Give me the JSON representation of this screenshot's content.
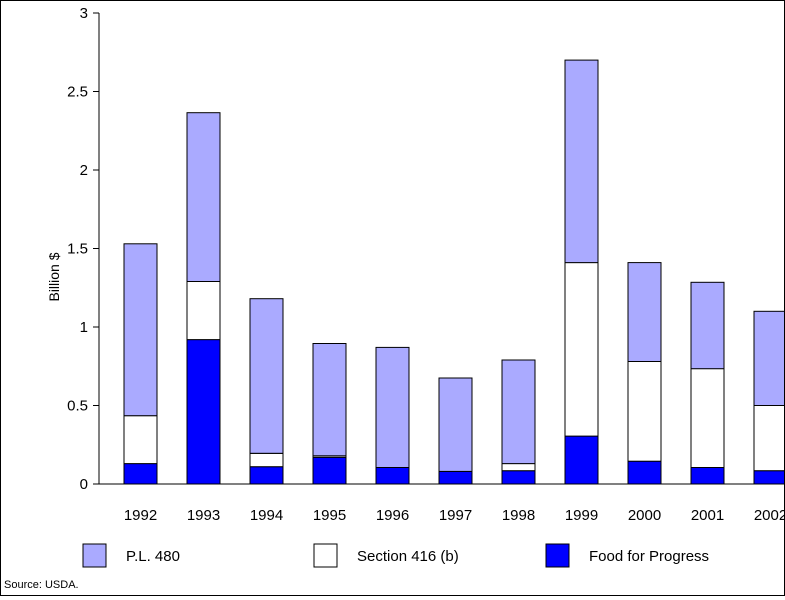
{
  "chart_data": {
    "type": "bar",
    "stacked": true,
    "categories": [
      "1992",
      "1993",
      "1994",
      "1995",
      "1996",
      "1997",
      "1998",
      "1999",
      "2000",
      "2001",
      "2002"
    ],
    "series": [
      {
        "name": "Food for Progress",
        "color": "#0000ff",
        "values": [
          0.13,
          0.92,
          0.11,
          0.17,
          0.105,
          0.08,
          0.085,
          0.305,
          0.145,
          0.105,
          0.085
        ]
      },
      {
        "name": "Section 416 (b)",
        "color": "#ffffff",
        "values": [
          0.305,
          0.37,
          0.085,
          0.01,
          0.0,
          0.0,
          0.045,
          1.105,
          0.635,
          0.63,
          0.415
        ]
      },
      {
        "name": "P.L. 480",
        "color": "#aaaaff",
        "values": [
          1.095,
          1.075,
          0.985,
          0.715,
          0.765,
          0.595,
          0.66,
          1.29,
          0.63,
          0.55,
          0.6
        ]
      }
    ],
    "xlabel": "",
    "ylabel": "Billion $",
    "ylim": [
      0,
      3
    ],
    "yticks": [
      "0",
      "0.5",
      "1",
      "1.5",
      "2",
      "2.5",
      "3"
    ],
    "grid": false,
    "legend_order": [
      "P.L. 480",
      "Section 416 (b)",
      "Food for Progress"
    ],
    "legend_placement": "bottom"
  },
  "source": "Source: USDA."
}
